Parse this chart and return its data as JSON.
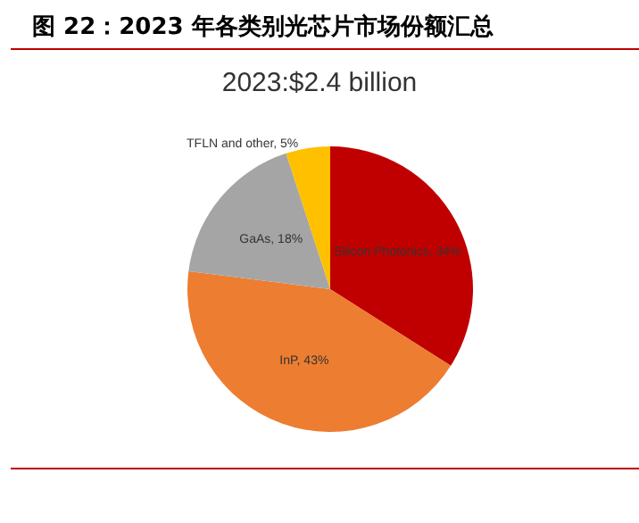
{
  "chart_data": {
    "type": "pie",
    "title": "图 22：2023 年各类别光芯片市场份额汇总",
    "subtitle": "2023:$2.4 billion",
    "categories": [
      "Silicon Photonics",
      "InP",
      "GaAs",
      "TFLN and other"
    ],
    "values": [
      34,
      43,
      18,
      5
    ],
    "colors": [
      "#c00000",
      "#ed7d31",
      "#a5a5a5",
      "#ffc000"
    ],
    "value_labels": [
      "34%",
      "43%",
      "18%",
      "5%"
    ],
    "legend": false
  }
}
